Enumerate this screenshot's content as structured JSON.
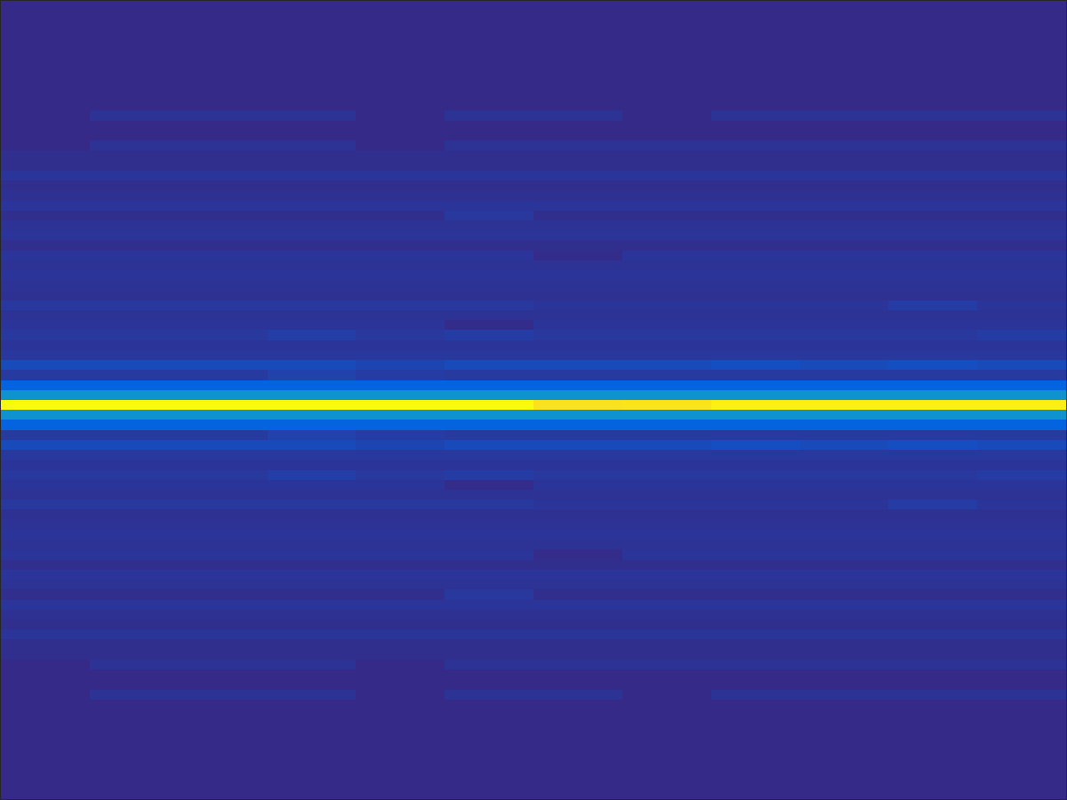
{
  "chart_data": {
    "type": "heatmap",
    "tick_labels": false,
    "xlim": [
      -0.5,
      11.5
    ],
    "ylim": [
      79.5,
      -0.5
    ],
    "clim": [
      0,
      1
    ],
    "z": [
      [
        0,
        0,
        0,
        0,
        0,
        0,
        0,
        0,
        0,
        0,
        0,
        0
      ],
      [
        0,
        0,
        0,
        0,
        0,
        0,
        0,
        0,
        0,
        0,
        0,
        0
      ],
      [
        0,
        0,
        0,
        0,
        0,
        0,
        0,
        0,
        0,
        0,
        0,
        0
      ],
      [
        0,
        0,
        0,
        0,
        0,
        0,
        0,
        0,
        0,
        0,
        0,
        0
      ],
      [
        0,
        0,
        0,
        0,
        0,
        0,
        0,
        0,
        0,
        0,
        0,
        0
      ],
      [
        0,
        0,
        0,
        0,
        0,
        0,
        0,
        0,
        0,
        0,
        0,
        0
      ],
      [
        0,
        0,
        0,
        0,
        0,
        0,
        0,
        0,
        0,
        0,
        0,
        0
      ],
      [
        0,
        0,
        0,
        0,
        0,
        0,
        0,
        0,
        0,
        0,
        0,
        0
      ],
      [
        0,
        0,
        0,
        0,
        0,
        0,
        0,
        0,
        0,
        0,
        0,
        0
      ],
      [
        0,
        0,
        0,
        0,
        0,
        0,
        0,
        0,
        0,
        0,
        0,
        0
      ],
      [
        0,
        0,
        0,
        0,
        0,
        0,
        0,
        0,
        0,
        0,
        0,
        0
      ],
      [
        0,
        0.02,
        0.02,
        0.02,
        0,
        0.02,
        0.02,
        0,
        0.02,
        0.02,
        0.02,
        0.02
      ],
      [
        0,
        0,
        0,
        0,
        0,
        0,
        0,
        0,
        0,
        0,
        0,
        0
      ],
      [
        0,
        0,
        0,
        0,
        0,
        0,
        0,
        0,
        0,
        0,
        0,
        0
      ],
      [
        0,
        0.02,
        0.02,
        0.02,
        0,
        0.02,
        0.02,
        0.02,
        0.02,
        0.02,
        0.02,
        0.02
      ],
      [
        0.01,
        0.01,
        0.01,
        0.01,
        0.01,
        0.01,
        0.01,
        0.01,
        0.01,
        0.01,
        0.01,
        0.01
      ],
      [
        0.01,
        0.01,
        0.01,
        0.01,
        0.01,
        0.01,
        0.01,
        0.01,
        0.01,
        0.01,
        0.01,
        0.01
      ],
      [
        0.025,
        0.025,
        0.025,
        0.025,
        0.025,
        0.025,
        0.025,
        0.025,
        0.025,
        0.025,
        0.025,
        0.025
      ],
      [
        0.01,
        0.01,
        0.01,
        0.01,
        0.01,
        0.01,
        0.01,
        0.01,
        0.01,
        0.01,
        0.01,
        0.01
      ],
      [
        0.015,
        0.015,
        0.015,
        0.015,
        0.015,
        0.015,
        0.015,
        0.015,
        0.015,
        0.015,
        0.015,
        0.015
      ],
      [
        0.025,
        0.025,
        0.025,
        0.025,
        0.025,
        0.025,
        0.025,
        0.025,
        0.025,
        0.025,
        0.025,
        0.025
      ],
      [
        0.01,
        0.01,
        0.01,
        0.01,
        0.01,
        0.03,
        0.01,
        0.01,
        0.01,
        0.01,
        0.01,
        0.01
      ],
      [
        0.02,
        0.02,
        0.02,
        0.02,
        0.02,
        0.02,
        0.02,
        0.02,
        0.02,
        0.02,
        0.02,
        0.02
      ],
      [
        0.025,
        0.025,
        0.025,
        0.025,
        0.025,
        0.025,
        0.025,
        0.025,
        0.025,
        0.025,
        0.025,
        0.025
      ],
      [
        0.01,
        0.01,
        0.01,
        0.01,
        0.01,
        0.01,
        0.01,
        0.01,
        0.01,
        0.01,
        0.01,
        0.01
      ],
      [
        0.025,
        0.025,
        0.025,
        0.025,
        0.025,
        0.025,
        0.005,
        0.025,
        0.025,
        0.025,
        0.025,
        0.025
      ],
      [
        0.02,
        0.02,
        0.02,
        0.02,
        0.02,
        0.02,
        0.02,
        0.02,
        0.02,
        0.02,
        0.02,
        0.02
      ],
      [
        0.025,
        0.025,
        0.025,
        0.025,
        0.025,
        0.025,
        0.025,
        0.025,
        0.025,
        0.025,
        0.025,
        0.025
      ],
      [
        0.02,
        0.02,
        0.02,
        0.02,
        0.02,
        0.02,
        0.02,
        0.02,
        0.02,
        0.02,
        0.02,
        0.02
      ],
      [
        0.015,
        0.015,
        0.015,
        0.015,
        0.015,
        0.015,
        0.015,
        0.015,
        0.015,
        0.015,
        0.015,
        0.015
      ],
      [
        0.03,
        0.03,
        0.03,
        0.03,
        0.03,
        0.03,
        0.025,
        0.025,
        0.025,
        0.025,
        0.04,
        0.025
      ],
      [
        0.02,
        0.02,
        0.02,
        0.02,
        0.02,
        0.02,
        0.02,
        0.02,
        0.02,
        0.02,
        0.02,
        0.02
      ],
      [
        0.025,
        0.025,
        0.025,
        0.025,
        0.025,
        0.005,
        0.025,
        0.025,
        0.025,
        0.025,
        0.025,
        0.025
      ],
      [
        0.03,
        0.03,
        0.03,
        0.045,
        0.03,
        0.04,
        0.03,
        0.03,
        0.03,
        0.03,
        0.03,
        0.04
      ],
      [
        0.025,
        0.025,
        0.025,
        0.025,
        0.025,
        0.025,
        0.025,
        0.025,
        0.025,
        0.025,
        0.025,
        0.025
      ],
      [
        0.03,
        0.03,
        0.03,
        0.03,
        0.03,
        0.03,
        0.03,
        0.03,
        0.03,
        0.03,
        0.03,
        0.03
      ],
      [
        0.07,
        0.07,
        0.07,
        0.07,
        0.06,
        0.07,
        0.07,
        0.07,
        0.08,
        0.07,
        0.08,
        0.07
      ],
      [
        0.035,
        0.035,
        0.035,
        0.05,
        0.04,
        0.035,
        0.035,
        0.035,
        0.035,
        0.035,
        0.035,
        0.035
      ],
      [
        0.13,
        0.13,
        0.13,
        0.13,
        0.13,
        0.13,
        0.13,
        0.13,
        0.13,
        0.13,
        0.13,
        0.13
      ],
      [
        0.3,
        0.3,
        0.3,
        0.3,
        0.3,
        0.3,
        0.3,
        0.3,
        0.3,
        0.3,
        0.3,
        0.3
      ],
      [
        1,
        1,
        1,
        1,
        1,
        1,
        0.93,
        0.94,
        0.97,
        0.97,
        0.97,
        0.97
      ],
      [
        0.3,
        0.3,
        0.3,
        0.3,
        0.3,
        0.3,
        0.3,
        0.3,
        0.3,
        0.3,
        0.3,
        0.3
      ],
      [
        0.13,
        0.13,
        0.13,
        0.13,
        0.13,
        0.13,
        0.13,
        0.13,
        0.13,
        0.13,
        0.13,
        0.13
      ],
      [
        0.035,
        0.035,
        0.035,
        0.05,
        0.04,
        0.035,
        0.035,
        0.035,
        0.035,
        0.035,
        0.035,
        0.035
      ],
      [
        0.07,
        0.07,
        0.07,
        0.07,
        0.06,
        0.07,
        0.07,
        0.07,
        0.08,
        0.07,
        0.08,
        0.07
      ],
      [
        0.03,
        0.03,
        0.03,
        0.03,
        0.03,
        0.03,
        0.03,
        0.03,
        0.03,
        0.03,
        0.03,
        0.03
      ],
      [
        0.025,
        0.025,
        0.025,
        0.025,
        0.025,
        0.025,
        0.025,
        0.025,
        0.025,
        0.025,
        0.025,
        0.025
      ],
      [
        0.03,
        0.03,
        0.03,
        0.045,
        0.03,
        0.04,
        0.03,
        0.03,
        0.03,
        0.03,
        0.03,
        0.04
      ],
      [
        0.025,
        0.025,
        0.025,
        0.025,
        0.025,
        0.005,
        0.025,
        0.025,
        0.025,
        0.025,
        0.025,
        0.025
      ],
      [
        0.02,
        0.02,
        0.02,
        0.02,
        0.02,
        0.02,
        0.02,
        0.02,
        0.02,
        0.02,
        0.02,
        0.02
      ],
      [
        0.03,
        0.03,
        0.03,
        0.03,
        0.03,
        0.03,
        0.025,
        0.025,
        0.025,
        0.025,
        0.04,
        0.025
      ],
      [
        0.015,
        0.015,
        0.015,
        0.015,
        0.015,
        0.015,
        0.015,
        0.015,
        0.015,
        0.015,
        0.015,
        0.015
      ],
      [
        0.02,
        0.02,
        0.02,
        0.02,
        0.02,
        0.02,
        0.02,
        0.02,
        0.02,
        0.02,
        0.02,
        0.02
      ],
      [
        0.025,
        0.025,
        0.025,
        0.025,
        0.025,
        0.025,
        0.025,
        0.025,
        0.025,
        0.025,
        0.025,
        0.025
      ],
      [
        0.02,
        0.02,
        0.02,
        0.02,
        0.02,
        0.02,
        0.02,
        0.02,
        0.02,
        0.02,
        0.02,
        0.02
      ],
      [
        0.025,
        0.025,
        0.025,
        0.025,
        0.025,
        0.025,
        0.005,
        0.025,
        0.025,
        0.025,
        0.025,
        0.025
      ],
      [
        0.01,
        0.01,
        0.01,
        0.01,
        0.01,
        0.01,
        0.01,
        0.01,
        0.01,
        0.01,
        0.01,
        0.01
      ],
      [
        0.025,
        0.025,
        0.025,
        0.025,
        0.025,
        0.025,
        0.025,
        0.025,
        0.025,
        0.025,
        0.025,
        0.025
      ],
      [
        0.02,
        0.02,
        0.02,
        0.02,
        0.02,
        0.02,
        0.02,
        0.02,
        0.02,
        0.02,
        0.02,
        0.02
      ],
      [
        0.01,
        0.01,
        0.01,
        0.01,
        0.01,
        0.03,
        0.01,
        0.01,
        0.01,
        0.01,
        0.01,
        0.01
      ],
      [
        0.025,
        0.025,
        0.025,
        0.025,
        0.025,
        0.025,
        0.025,
        0.025,
        0.025,
        0.025,
        0.025,
        0.025
      ],
      [
        0.015,
        0.015,
        0.015,
        0.015,
        0.015,
        0.015,
        0.015,
        0.015,
        0.015,
        0.015,
        0.015,
        0.015
      ],
      [
        0.01,
        0.01,
        0.01,
        0.01,
        0.01,
        0.01,
        0.01,
        0.01,
        0.01,
        0.01,
        0.01,
        0.01
      ],
      [
        0.025,
        0.025,
        0.025,
        0.025,
        0.025,
        0.025,
        0.025,
        0.025,
        0.025,
        0.025,
        0.025,
        0.025
      ],
      [
        0.01,
        0.01,
        0.01,
        0.01,
        0.01,
        0.01,
        0.01,
        0.01,
        0.01,
        0.01,
        0.01,
        0.01
      ],
      [
        0.01,
        0.01,
        0.01,
        0.01,
        0.01,
        0.01,
        0.01,
        0.01,
        0.01,
        0.01,
        0.01,
        0.01
      ],
      [
        0,
        0.02,
        0.02,
        0.02,
        0,
        0.02,
        0.02,
        0.02,
        0.02,
        0.02,
        0.02,
        0.02
      ],
      [
        0,
        0,
        0,
        0,
        0,
        0,
        0,
        0,
        0,
        0,
        0,
        0
      ],
      [
        0,
        0,
        0,
        0,
        0,
        0,
        0,
        0,
        0,
        0,
        0,
        0
      ],
      [
        0,
        0.02,
        0.02,
        0.02,
        0,
        0.02,
        0.02,
        0,
        0.02,
        0.02,
        0.02,
        0.02
      ],
      [
        0,
        0,
        0,
        0,
        0,
        0,
        0,
        0,
        0,
        0,
        0,
        0
      ],
      [
        0,
        0,
        0,
        0,
        0,
        0,
        0,
        0,
        0,
        0,
        0,
        0
      ],
      [
        0,
        0,
        0,
        0,
        0,
        0,
        0,
        0,
        0,
        0,
        0,
        0
      ],
      [
        0,
        0,
        0,
        0,
        0,
        0,
        0,
        0,
        0,
        0,
        0,
        0
      ],
      [
        0,
        0,
        0,
        0,
        0,
        0,
        0,
        0,
        0,
        0,
        0,
        0
      ],
      [
        0,
        0,
        0,
        0,
        0,
        0,
        0,
        0,
        0,
        0,
        0,
        0
      ],
      [
        0,
        0,
        0,
        0,
        0,
        0,
        0,
        0,
        0,
        0,
        0,
        0
      ],
      [
        0,
        0,
        0,
        0,
        0,
        0,
        0,
        0,
        0,
        0,
        0,
        0
      ],
      [
        0,
        0,
        0,
        0,
        0,
        0,
        0,
        0,
        0,
        0,
        0,
        0
      ],
      [
        0,
        0,
        0,
        0,
        0,
        0,
        0,
        0,
        0,
        0,
        0,
        0
      ]
    ]
  }
}
